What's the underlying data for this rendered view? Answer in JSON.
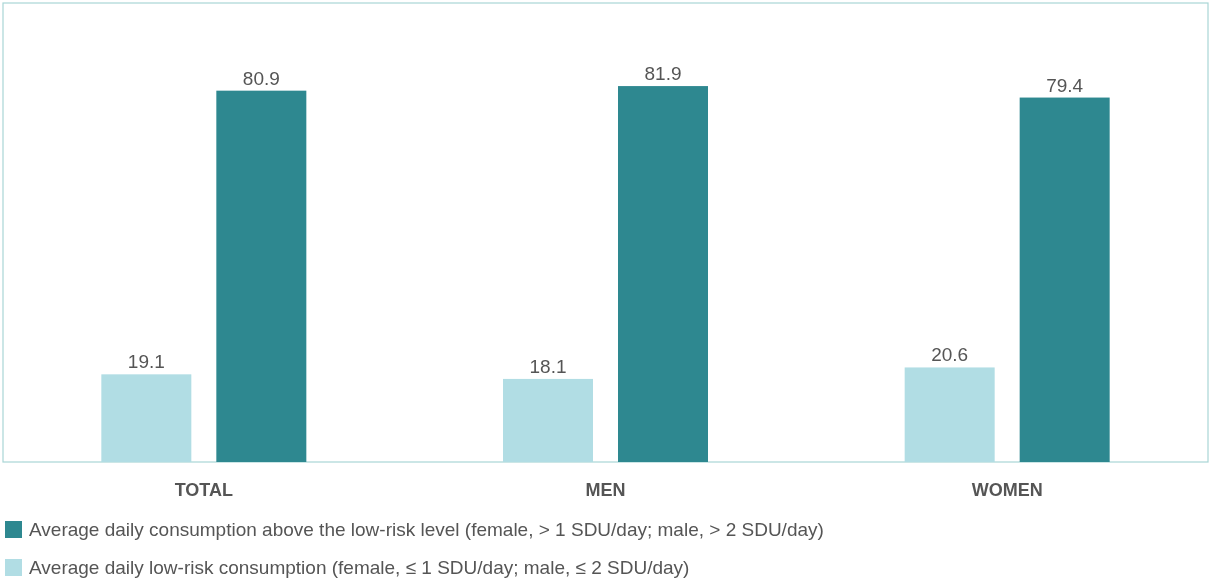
{
  "chart_data": {
    "type": "bar",
    "categories": [
      "TOTAL",
      "MEN",
      "WOMEN"
    ],
    "series": [
      {
        "name": "Average daily low-risk consumption (female, ≤ 1 SDU/day; male, ≤ 2 SDU/day)",
        "color": "#b1dde4",
        "values": [
          19.1,
          18.1,
          20.6
        ]
      },
      {
        "name": "Average daily consumption above the low-risk level (female, > 1 SDU/day; male, > 2 SDU/day)",
        "color": "#2e8890",
        "values": [
          80.9,
          81.9,
          79.4
        ]
      }
    ],
    "ylim": [
      0,
      100
    ],
    "tick_labels": "x",
    "data_labels": true,
    "legend": "bottom"
  }
}
